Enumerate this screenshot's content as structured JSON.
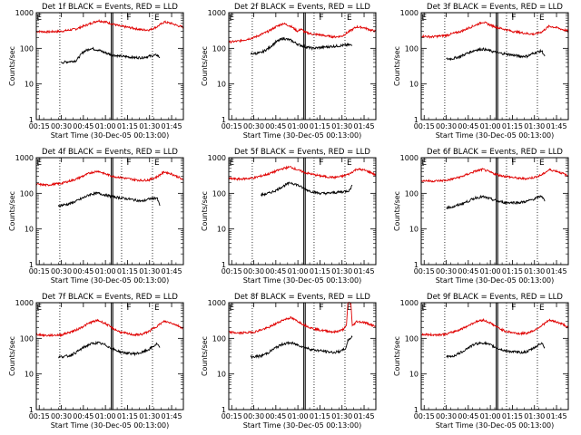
{
  "colors": {
    "events": "#000000",
    "lld": "#e00000",
    "axes": "#000000",
    "background": "#ffffff"
  },
  "chart_data": {
    "type": "line",
    "shared": {
      "xlabel": "Start Time (30-Dec-05 00:13:00)",
      "ylabel": "Counts/sec",
      "x_range_minutes": [
        13,
        113
      ],
      "x_tick_labels": [
        "00:15",
        "00:30",
        "00:45",
        "01:00",
        "01:15",
        "01:30",
        "01:45"
      ],
      "x_tick_minutes": [
        15,
        30,
        45,
        60,
        75,
        90,
        105
      ],
      "y_scale": "log",
      "ylim": [
        1,
        1000
      ],
      "y_tick_labels": [
        "1",
        "10",
        "100",
        "1000"
      ],
      "y_tick_values": [
        1,
        10,
        100,
        1000
      ],
      "dotted_vlines_minutes": [
        29,
        71,
        92
      ],
      "solid_vlines_minutes": [
        64,
        65
      ],
      "vline_marks": [
        "E",
        "F",
        "E"
      ],
      "vline_mark_minutes": [
        15,
        76,
        95
      ],
      "series_names": [
        "Events",
        "LLD"
      ]
    },
    "panels": [
      {
        "title": "Det 1f BLACK = Events, RED = LLD",
        "events_x": [
          30,
          40,
          45,
          50,
          55,
          60,
          65,
          70,
          75,
          80,
          85,
          90,
          95,
          97
        ],
        "events_y": [
          40,
          45,
          80,
          100,
          90,
          75,
          65,
          60,
          58,
          55,
          55,
          60,
          65,
          55
        ],
        "lld_x": [
          13,
          20,
          30,
          40,
          50,
          55,
          60,
          65,
          70,
          75,
          80,
          85,
          90,
          95,
          100,
          105,
          110,
          113
        ],
        "lld_y": [
          300,
          290,
          300,
          350,
          500,
          600,
          550,
          480,
          420,
          390,
          360,
          330,
          330,
          400,
          550,
          500,
          420,
          390
        ]
      },
      {
        "title": "Det 2f BLACK = Events, RED = LLD",
        "events_x": [
          28,
          35,
          40,
          45,
          50,
          55,
          60,
          65,
          70,
          75,
          80,
          85,
          90,
          95,
          97
        ],
        "events_y": [
          70,
          75,
          100,
          150,
          190,
          170,
          130,
          110,
          100,
          105,
          110,
          115,
          120,
          125,
          120
        ],
        "lld_x": [
          13,
          20,
          30,
          40,
          45,
          50,
          55,
          60,
          62,
          65,
          70,
          75,
          80,
          85,
          90,
          95,
          100,
          105,
          110,
          113
        ],
        "lld_y": [
          150,
          160,
          200,
          300,
          400,
          500,
          420,
          300,
          350,
          280,
          250,
          240,
          220,
          210,
          220,
          300,
          400,
          380,
          320,
          300
        ]
      },
      {
        "title": "Det 3f BLACK = Events, RED = LLD",
        "events_x": [
          30,
          35,
          40,
          45,
          50,
          55,
          60,
          65,
          70,
          75,
          80,
          85,
          90,
          95,
          97
        ],
        "events_y": [
          50,
          52,
          60,
          75,
          90,
          95,
          85,
          75,
          70,
          65,
          60,
          60,
          75,
          85,
          60
        ],
        "lld_x": [
          13,
          20,
          30,
          40,
          50,
          55,
          60,
          65,
          70,
          75,
          80,
          85,
          90,
          95,
          100,
          105,
          110,
          113
        ],
        "lld_y": [
          220,
          210,
          230,
          300,
          450,
          550,
          450,
          380,
          340,
          300,
          280,
          260,
          250,
          290,
          420,
          380,
          330,
          300
        ]
      },
      {
        "title": "Det 4f BLACK = Events, RED = LLD",
        "events_x": [
          28,
          35,
          40,
          45,
          50,
          55,
          60,
          65,
          70,
          75,
          80,
          85,
          90,
          95,
          97
        ],
        "events_y": [
          45,
          50,
          60,
          75,
          95,
          100,
          90,
          80,
          75,
          70,
          65,
          60,
          70,
          75,
          45
        ],
        "lld_x": [
          13,
          20,
          30,
          40,
          50,
          55,
          60,
          65,
          70,
          75,
          80,
          85,
          90,
          95,
          100,
          105,
          110,
          113
        ],
        "lld_y": [
          180,
          170,
          190,
          250,
          380,
          420,
          350,
          300,
          280,
          260,
          240,
          230,
          240,
          290,
          400,
          350,
          280,
          230
        ]
      },
      {
        "title": "Det 5f BLACK = Events, RED = LLD",
        "events_x": [
          35,
          40,
          45,
          50,
          55,
          60,
          65,
          70,
          75,
          80,
          85,
          90,
          95,
          97
        ],
        "events_y": [
          90,
          100,
          120,
          160,
          200,
          170,
          130,
          110,
          100,
          100,
          105,
          110,
          120,
          170
        ],
        "lld_x": [
          13,
          20,
          30,
          40,
          50,
          55,
          60,
          65,
          70,
          75,
          80,
          85,
          90,
          95,
          100,
          105,
          110,
          113
        ],
        "lld_y": [
          260,
          250,
          270,
          350,
          500,
          550,
          450,
          380,
          340,
          310,
          290,
          280,
          300,
          350,
          480,
          450,
          380,
          320
        ]
      },
      {
        "title": "Det 6f BLACK = Events, RED = LLD",
        "events_x": [
          30,
          35,
          40,
          45,
          50,
          55,
          60,
          65,
          70,
          75,
          80,
          85,
          90,
          95,
          97
        ],
        "events_y": [
          40,
          42,
          50,
          60,
          75,
          80,
          70,
          60,
          55,
          55,
          55,
          60,
          70,
          85,
          60
        ],
        "lld_x": [
          13,
          20,
          30,
          40,
          50,
          55,
          60,
          65,
          70,
          75,
          80,
          85,
          90,
          95,
          100,
          105,
          110,
          113
        ],
        "lld_y": [
          230,
          220,
          230,
          290,
          420,
          470,
          390,
          330,
          300,
          280,
          260,
          260,
          280,
          330,
          460,
          420,
          350,
          300
        ]
      },
      {
        "title": "Det 7f BLACK = Events, RED = LLD",
        "events_x": [
          28,
          35,
          40,
          45,
          50,
          55,
          60,
          65,
          70,
          75,
          80,
          85,
          90,
          95,
          97
        ],
        "events_y": [
          30,
          32,
          40,
          55,
          70,
          75,
          65,
          50,
          42,
          38,
          37,
          40,
          50,
          70,
          55
        ],
        "lld_x": [
          13,
          20,
          30,
          40,
          50,
          55,
          60,
          65,
          70,
          75,
          80,
          85,
          90,
          95,
          100,
          105,
          110,
          113
        ],
        "lld_y": [
          130,
          120,
          125,
          170,
          280,
          320,
          260,
          190,
          150,
          135,
          125,
          130,
          160,
          220,
          300,
          270,
          220,
          190
        ]
      },
      {
        "title": "Det 8f BLACK = Events, RED = LLD",
        "events_x": [
          28,
          35,
          40,
          45,
          50,
          55,
          60,
          65,
          70,
          75,
          80,
          85,
          90,
          93,
          94,
          97
        ],
        "events_y": [
          30,
          32,
          40,
          55,
          70,
          75,
          65,
          55,
          48,
          45,
          42,
          40,
          45,
          55,
          90,
          110
        ],
        "lld_x": [
          13,
          20,
          30,
          40,
          50,
          55,
          60,
          65,
          70,
          75,
          80,
          85,
          90,
          93,
          94,
          96,
          97,
          100,
          105,
          110,
          113
        ],
        "lld_y": [
          150,
          140,
          150,
          200,
          330,
          380,
          300,
          230,
          190,
          170,
          160,
          150,
          170,
          220,
          1000,
          1000,
          220,
          300,
          280,
          240,
          210
        ]
      },
      {
        "title": "Det 9f BLACK = Events, RED = LLD",
        "events_x": [
          30,
          35,
          40,
          45,
          50,
          55,
          60,
          65,
          70,
          75,
          80,
          85,
          90,
          95,
          97
        ],
        "events_y": [
          30,
          32,
          40,
          55,
          70,
          75,
          65,
          52,
          45,
          42,
          40,
          42,
          55,
          75,
          55
        ],
        "lld_x": [
          13,
          20,
          30,
          40,
          50,
          55,
          60,
          65,
          70,
          75,
          80,
          85,
          90,
          95,
          100,
          105,
          110,
          113
        ],
        "lld_y": [
          130,
          125,
          130,
          180,
          290,
          330,
          270,
          200,
          160,
          145,
          135,
          140,
          170,
          230,
          320,
          290,
          240,
          200
        ]
      }
    ]
  }
}
